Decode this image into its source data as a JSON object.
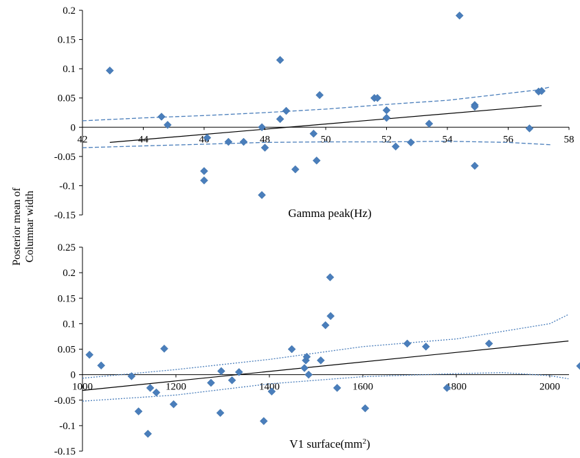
{
  "chart_data": [
    {
      "type": "scatter",
      "xlabel": "Gamma peak(Hz)",
      "ylabel": "Posterior mean of Columnar width",
      "xlim": [
        42,
        58
      ],
      "ylim": [
        -0.15,
        0.2
      ],
      "xticks": [
        "42",
        "44",
        "46",
        "48",
        "50",
        "52",
        "54",
        "56",
        "58"
      ],
      "yticks": [
        "-0.15",
        "-0.1",
        "-0.05",
        "0",
        "0.05",
        "0.1",
        "0.15",
        "0.2"
      ],
      "points": [
        [
          42.9,
          0.097
        ],
        [
          44.6,
          0.018
        ],
        [
          44.8,
          0.004
        ],
        [
          46.0,
          -0.075
        ],
        [
          46.0,
          -0.091
        ],
        [
          46.1,
          -0.018
        ],
        [
          46.8,
          -0.025
        ],
        [
          47.3,
          -0.025
        ],
        [
          47.9,
          -0.116
        ],
        [
          47.9,
          0.0
        ],
        [
          48.0,
          -0.035
        ],
        [
          48.5,
          0.115
        ],
        [
          48.5,
          0.014
        ],
        [
          48.7,
          0.028
        ],
        [
          49.0,
          -0.072
        ],
        [
          49.6,
          -0.011
        ],
        [
          49.7,
          -0.057
        ],
        [
          49.8,
          0.055
        ],
        [
          51.6,
          0.05
        ],
        [
          51.7,
          0.05
        ],
        [
          52.0,
          0.029
        ],
        [
          52.0,
          0.016
        ],
        [
          52.3,
          -0.033
        ],
        [
          52.8,
          -0.026
        ],
        [
          53.4,
          0.006
        ],
        [
          54.4,
          0.191
        ],
        [
          54.9,
          0.038
        ],
        [
          54.9,
          0.035
        ],
        [
          54.9,
          -0.066
        ],
        [
          56.7,
          -0.002
        ],
        [
          57.0,
          0.061
        ],
        [
          57.1,
          0.062
        ]
      ],
      "fit_line": [
        [
          42.9,
          -0.026
        ],
        [
          57.1,
          0.037
        ]
      ],
      "ci_upper": [
        [
          42,
          0.011
        ],
        [
          44,
          0.016
        ],
        [
          46,
          0.02
        ],
        [
          48,
          0.025
        ],
        [
          50,
          0.031
        ],
        [
          52,
          0.039
        ],
        [
          54,
          0.046
        ],
        [
          55,
          0.052
        ],
        [
          56,
          0.058
        ],
        [
          57,
          0.064
        ],
        [
          57.4,
          0.069
        ]
      ],
      "ci_lower": [
        [
          42,
          -0.035
        ],
        [
          44,
          -0.032
        ],
        [
          46,
          -0.029
        ],
        [
          48,
          -0.026
        ],
        [
          50,
          -0.025
        ],
        [
          52,
          -0.025
        ],
        [
          54,
          -0.024
        ],
        [
          56,
          -0.026
        ],
        [
          57.4,
          -0.03
        ]
      ]
    },
    {
      "type": "scatter",
      "xlabel": "V1 surface(mm",
      "xlabel_sup": "2",
      "xlabel_end": ")",
      "ylabel": "Posterior mean of Columnar width",
      "xlim": [
        1000,
        2050
      ],
      "ylim": [
        -0.15,
        0.25
      ],
      "xticks": [
        "1000",
        "1200",
        "1400",
        "1600",
        "1800",
        "2000"
      ],
      "xtick_values": [
        1000,
        1200,
        1400,
        1600,
        1800,
        2000
      ],
      "yticks": [
        "-0.15",
        "-0.1",
        "-0.05",
        "0",
        "0.05",
        "0.1",
        "0.15",
        "0.2",
        "0.25"
      ],
      "points": [
        [
          1015,
          0.039
        ],
        [
          1040,
          0.018
        ],
        [
          1105,
          -0.003
        ],
        [
          1120,
          -0.072
        ],
        [
          1140,
          -0.116
        ],
        [
          1145,
          -0.026
        ],
        [
          1158,
          -0.035
        ],
        [
          1175,
          0.051
        ],
        [
          1195,
          -0.058
        ],
        [
          1275,
          -0.016
        ],
        [
          1295,
          -0.075
        ],
        [
          1297,
          0.007
        ],
        [
          1320,
          -0.011
        ],
        [
          1335,
          0.005
        ],
        [
          1388,
          -0.091
        ],
        [
          1405,
          -0.033
        ],
        [
          1448,
          0.05
        ],
        [
          1475,
          0.013
        ],
        [
          1478,
          0.028
        ],
        [
          1480,
          0.035
        ],
        [
          1484,
          0.0
        ],
        [
          1510,
          0.028
        ],
        [
          1520,
          0.097
        ],
        [
          1530,
          0.191
        ],
        [
          1531,
          0.115
        ],
        [
          1545,
          -0.026
        ],
        [
          1605,
          -0.066
        ],
        [
          1695,
          0.061
        ],
        [
          1735,
          0.055
        ],
        [
          1780,
          -0.026
        ],
        [
          1870,
          0.061
        ],
        [
          2065,
          0.017
        ]
      ],
      "fit_line": [
        [
          1000,
          -0.031
        ],
        [
          2040,
          0.066
        ]
      ],
      "ci_upper": [
        [
          1000,
          -0.007
        ],
        [
          1200,
          0.01
        ],
        [
          1400,
          0.03
        ],
        [
          1600,
          0.055
        ],
        [
          1800,
          0.07
        ],
        [
          1900,
          0.085
        ],
        [
          2000,
          0.1
        ],
        [
          2040,
          0.118
        ]
      ],
      "ci_lower": [
        [
          1000,
          -0.052
        ],
        [
          1200,
          -0.04
        ],
        [
          1400,
          -0.018
        ],
        [
          1600,
          -0.004
        ],
        [
          1800,
          0.002
        ],
        [
          1900,
          0.004
        ],
        [
          2000,
          -0.002
        ],
        [
          2040,
          -0.008
        ]
      ]
    }
  ],
  "shared_ylabel": [
    "Posterior mean of",
    "Columnar width"
  ],
  "colors": {
    "marker": "#4a7ebb",
    "fit": "#000000",
    "ci": "#4a7ebb"
  }
}
